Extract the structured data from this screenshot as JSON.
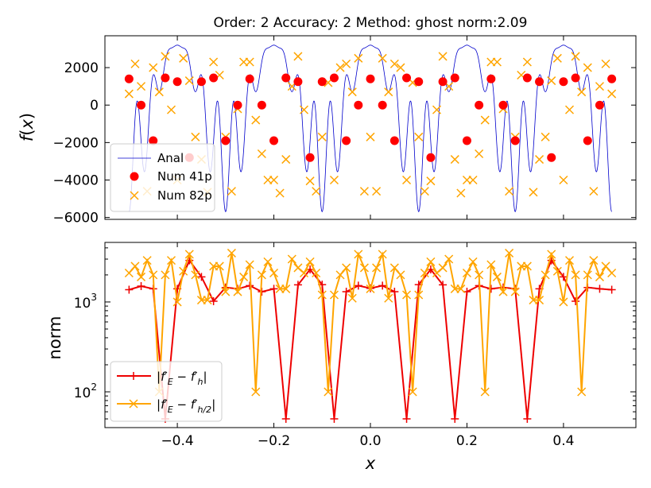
{
  "chart_data": [
    {
      "type": "line",
      "title": "Order: 2 Accuracy: 2 Method: ghost norm:2.09",
      "xlabel": "",
      "ylabel": "f(x)",
      "xlim": [
        -0.55,
        0.55
      ],
      "ylim": [
        -6100,
        3700
      ],
      "xticks": [
        -0.4,
        -0.2,
        0.0,
        0.2,
        0.4
      ],
      "yticks": [
        2000,
        0,
        -2000,
        -4000,
        -6000
      ],
      "ytick_labels": [
        "2000",
        "0",
        "−2000",
        "−4000",
        "−6000"
      ],
      "legend_position": "lower-left",
      "colors": {
        "anal": "#0000cc",
        "num41": "#ff0000",
        "num82": "#ffa500"
      },
      "series": [
        {
          "name": "Anal",
          "style": "line",
          "note_curve": "f = 3200 cos^2(5 pi x) - 5690 sin^2(5 pi x) cos^2(30 pi x)"
        },
        {
          "name": "Num 41p",
          "style": "dots",
          "x": [
            -0.5,
            -0.475,
            -0.45,
            -0.425,
            -0.4,
            -0.375,
            -0.35,
            -0.325,
            -0.3,
            -0.275,
            -0.25,
            -0.225,
            -0.2,
            -0.175,
            -0.15,
            -0.125,
            -0.1,
            -0.075,
            -0.05,
            -0.025,
            0.0,
            0.025,
            0.05,
            0.075,
            0.1,
            0.125,
            0.15,
            0.175,
            0.2,
            0.225,
            0.25,
            0.275,
            0.3,
            0.325,
            0.35,
            0.375,
            0.4,
            0.425,
            0.45,
            0.475,
            0.5
          ],
          "y": [
            1400,
            0,
            -1900,
            1450,
            1250,
            -2800,
            1250,
            1450,
            -1900,
            0,
            1400,
            0,
            -1900,
            1450,
            1250,
            -2800,
            1250,
            1450,
            -1900,
            0,
            1400,
            0,
            -1900,
            1450,
            1250,
            -2800,
            1250,
            1450,
            -1900,
            0,
            1400,
            0,
            -1900,
            1450,
            1250,
            -2800,
            1250,
            1450,
            -1900,
            0,
            1400
          ]
        },
        {
          "name": "Num 82p",
          "style": "x",
          "x": [
            -0.5,
            -0.4875,
            -0.475,
            -0.4625,
            -0.45,
            -0.4375,
            -0.425,
            -0.4125,
            -0.4,
            -0.3875,
            -0.375,
            -0.3625,
            -0.35,
            -0.3375,
            -0.325,
            -0.3125,
            -0.3,
            -0.2875,
            -0.275,
            -0.2625,
            -0.25,
            -0.2375,
            -0.225,
            -0.2125,
            -0.2,
            -0.1875,
            -0.175,
            -0.1625,
            -0.15,
            -0.1375,
            -0.125,
            -0.1125,
            -0.1,
            -0.0875,
            -0.075,
            -0.0625,
            -0.05,
            -0.0375,
            -0.025,
            -0.0125,
            0.0,
            0.0125,
            0.025,
            0.0375,
            0.05,
            0.0625,
            0.075,
            0.0875,
            0.1,
            0.1125,
            0.125,
            0.1375,
            0.15,
            0.1625,
            0.175,
            0.1875,
            0.2,
            0.2125,
            0.225,
            0.2375,
            0.25,
            0.2625,
            0.275,
            0.2875,
            0.3,
            0.3125,
            0.325,
            0.3375,
            0.35,
            0.3625,
            0.375,
            0.3875,
            0.4,
            0.4125,
            0.425,
            0.4375,
            0.45,
            0.4625,
            0.475,
            0.4875,
            0.5
          ],
          "y": [
            600,
            2200,
            1000,
            -4600,
            2000,
            700,
            2600,
            -250,
            -4000,
            2500,
            1300,
            -1700,
            -2900,
            -4650,
            2300,
            1600,
            -1700,
            -4600,
            -200,
            2300,
            2300,
            -800,
            -2600,
            -4000,
            -4000,
            -4700,
            -2900,
            1000,
            2600,
            -250,
            -4050,
            -4600,
            -1700,
            1200,
            -4000,
            2000,
            2200,
            700,
            2500,
            -4600,
            -1700,
            -4600,
            2500,
            700,
            2200,
            2000,
            -4000,
            1200,
            -1700,
            -4600,
            -4050,
            -250,
            2600,
            1000,
            -2900,
            -4700,
            -4000,
            -4000,
            -2600,
            -800,
            2300,
            2300,
            -200,
            -4600,
            -1700,
            1600,
            2300,
            -4650,
            -2900,
            -1700,
            1300,
            2500,
            -4000,
            -250,
            2600,
            700,
            2000,
            -4600,
            1000,
            2200,
            600
          ]
        }
      ]
    },
    {
      "type": "line",
      "title": "",
      "xlabel": "x",
      "ylabel": "norm",
      "xlim": [
        -0.55,
        0.55
      ],
      "yscale": "log",
      "ylim": [
        40,
        4600
      ],
      "xticks": [
        -0.4,
        -0.2,
        0.0,
        0.2,
        0.4
      ],
      "xtick_labels": [
        "−0.4",
        "−0.2",
        "0.0",
        "0.2",
        "0.4"
      ],
      "yticks": [
        100,
        1000
      ],
      "legend_position": "lower-left",
      "series": [
        {
          "name": "|f'_E - f'_h|",
          "color": "#ee0000",
          "marker": "+",
          "x": [
            -0.5,
            -0.475,
            -0.45,
            -0.425,
            -0.4,
            -0.375,
            -0.35,
            -0.325,
            -0.3,
            -0.275,
            -0.25,
            -0.225,
            -0.2,
            -0.175,
            -0.15,
            -0.125,
            -0.1,
            -0.075,
            -0.05,
            -0.025,
            0.0,
            0.025,
            0.05,
            0.075,
            0.1,
            0.125,
            0.15,
            0.175,
            0.2,
            0.225,
            0.25,
            0.275,
            0.3,
            0.325,
            0.35,
            0.375,
            0.4,
            0.425,
            0.45,
            0.475,
            0.5
          ],
          "y": [
            1370,
            1500,
            1400,
            50,
            1400,
            2900,
            1900,
            1020,
            1450,
            1400,
            1520,
            1300,
            1400,
            50,
            1550,
            2300,
            1560,
            50,
            1300,
            1520,
            1420,
            1520,
            1300,
            50,
            1560,
            2300,
            1550,
            50,
            1300,
            1520,
            1400,
            1450,
            1400,
            50,
            1400,
            2900,
            1900,
            1020,
            1450,
            1400,
            1370
          ]
        },
        {
          "name": "|f'_E - f'_{h/2}|",
          "color": "#ffa500",
          "marker": "x",
          "x": [
            -0.5,
            -0.4875,
            -0.475,
            -0.4625,
            -0.45,
            -0.4375,
            -0.425,
            -0.4125,
            -0.4,
            -0.3875,
            -0.375,
            -0.3625,
            -0.35,
            -0.3375,
            -0.325,
            -0.3125,
            -0.3,
            -0.2875,
            -0.275,
            -0.2625,
            -0.25,
            -0.2375,
            -0.225,
            -0.2125,
            -0.2,
            -0.1875,
            -0.175,
            -0.1625,
            -0.15,
            -0.1375,
            -0.125,
            -0.1125,
            -0.1,
            -0.0875,
            -0.075,
            -0.0625,
            -0.05,
            -0.0375,
            -0.025,
            -0.0125,
            0.0,
            0.0125,
            0.025,
            0.0375,
            0.05,
            0.0625,
            0.075,
            0.0875,
            0.1,
            0.1125,
            0.125,
            0.1375,
            0.15,
            0.1625,
            0.175,
            0.1875,
            0.2,
            0.2125,
            0.225,
            0.2375,
            0.25,
            0.2625,
            0.275,
            0.2875,
            0.3,
            0.3125,
            0.325,
            0.3375,
            0.35,
            0.3625,
            0.375,
            0.3875,
            0.4,
            0.4125,
            0.425,
            0.4375,
            0.45,
            0.4625,
            0.475,
            0.4875,
            0.5
          ],
          "y": [
            2100,
            2500,
            1900,
            2900,
            2000,
            100,
            2000,
            2900,
            1000,
            2200,
            3400,
            2000,
            1050,
            1050,
            2500,
            2500,
            1300,
            3500,
            1300,
            1900,
            2600,
            100,
            2000,
            2800,
            2100,
            1400,
            1400,
            3000,
            2400,
            2100,
            2800,
            2100,
            1200,
            100,
            1200,
            2000,
            2400,
            1100,
            3400,
            2400,
            1400,
            2400,
            3400,
            1100,
            2400,
            2000,
            1200,
            100,
            1200,
            2100,
            2800,
            2100,
            2400,
            3000,
            1400,
            1400,
            2100,
            2800,
            2000,
            100,
            2600,
            1900,
            1300,
            3500,
            1300,
            2500,
            2500,
            1050,
            1050,
            2000,
            3400,
            2200,
            1000,
            2900,
            2000,
            100,
            2000,
            2900,
            1900,
            2500,
            2100
          ]
        }
      ]
    }
  ]
}
